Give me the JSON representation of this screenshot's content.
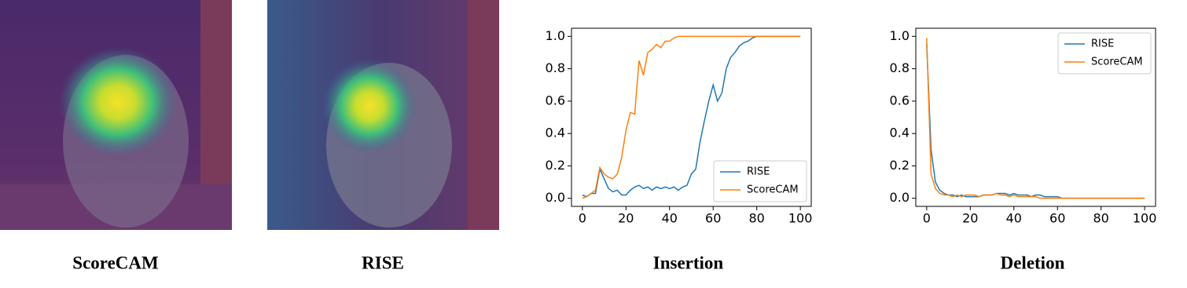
{
  "panels": [
    {
      "caption": "ScoreCAM"
    },
    {
      "caption": "RISE"
    }
  ],
  "chart_data": [
    {
      "type": "line",
      "title": "Insertion",
      "x": [
        0,
        2,
        4,
        6,
        8,
        10,
        12,
        14,
        16,
        18,
        20,
        22,
        24,
        26,
        28,
        30,
        32,
        34,
        36,
        38,
        40,
        42,
        44,
        46,
        48,
        50,
        52,
        54,
        56,
        58,
        60,
        62,
        64,
        66,
        68,
        70,
        72,
        74,
        76,
        78,
        80,
        82,
        84,
        86,
        88,
        90,
        92,
        94,
        96,
        98,
        100
      ],
      "series": [
        {
          "name": "RISE",
          "color": "#1f77b4",
          "values": [
            0.02,
            0.01,
            0.03,
            0.03,
            0.18,
            0.12,
            0.06,
            0.04,
            0.05,
            0.02,
            0.02,
            0.05,
            0.07,
            0.08,
            0.06,
            0.07,
            0.05,
            0.07,
            0.06,
            0.07,
            0.06,
            0.07,
            0.05,
            0.07,
            0.08,
            0.15,
            0.18,
            0.35,
            0.48,
            0.6,
            0.7,
            0.6,
            0.65,
            0.8,
            0.87,
            0.9,
            0.94,
            0.96,
            0.97,
            0.99,
            1.0,
            1.0,
            1.0,
            1.0,
            1.0,
            1.0,
            1.0,
            1.0,
            1.0,
            1.0,
            1.0
          ]
        },
        {
          "name": "ScoreCAM",
          "color": "#ff7f0e",
          "values": [
            0.0,
            0.01,
            0.03,
            0.05,
            0.19,
            0.15,
            0.13,
            0.12,
            0.15,
            0.25,
            0.42,
            0.53,
            0.52,
            0.85,
            0.76,
            0.9,
            0.92,
            0.95,
            0.93,
            0.97,
            0.97,
            0.99,
            1.0,
            1.0,
            1.0,
            1.0,
            1.0,
            1.0,
            1.0,
            1.0,
            1.0,
            1.0,
            1.0,
            1.0,
            1.0,
            1.0,
            1.0,
            1.0,
            1.0,
            1.0,
            1.0,
            1.0,
            1.0,
            1.0,
            1.0,
            1.0,
            1.0,
            1.0,
            1.0,
            1.0,
            1.0
          ]
        }
      ],
      "xlim": [
        -5,
        105
      ],
      "ylim": [
        -0.05,
        1.05
      ],
      "xticks": [
        0,
        20,
        40,
        60,
        80,
        100
      ],
      "yticks": [
        {
          "value": 0,
          "label": "0.0"
        },
        0.2,
        0.4,
        0.6,
        0.8,
        {
          "value": 1,
          "label": "1.0"
        }
      ],
      "legend": "lower right"
    },
    {
      "type": "line",
      "title": "Deletion",
      "x": [
        0,
        2,
        4,
        6,
        8,
        10,
        12,
        14,
        16,
        18,
        20,
        22,
        24,
        26,
        28,
        30,
        32,
        34,
        36,
        38,
        40,
        42,
        44,
        46,
        48,
        50,
        52,
        54,
        56,
        58,
        60,
        62,
        64,
        66,
        68,
        70,
        72,
        74,
        76,
        78,
        80,
        82,
        84,
        86,
        88,
        90,
        92,
        94,
        96,
        98,
        100
      ],
      "series": [
        {
          "name": "RISE",
          "color": "#1f77b4",
          "values": [
            0.95,
            0.3,
            0.1,
            0.05,
            0.03,
            0.02,
            0.02,
            0.01,
            0.02,
            0.01,
            0.01,
            0.01,
            0.01,
            0.02,
            0.02,
            0.02,
            0.03,
            0.03,
            0.03,
            0.02,
            0.03,
            0.02,
            0.02,
            0.02,
            0.01,
            0.02,
            0.02,
            0.01,
            0.01,
            0.01,
            0.01,
            0,
            0,
            0,
            0,
            0,
            0,
            0,
            0,
            0,
            0,
            0,
            0,
            0,
            0,
            0,
            0,
            0,
            0,
            0,
            0
          ]
        },
        {
          "name": "ScoreCAM",
          "color": "#ff7f0e",
          "values": [
            0.99,
            0.15,
            0.06,
            0.03,
            0.02,
            0.02,
            0.01,
            0.02,
            0.01,
            0.02,
            0.02,
            0.02,
            0.01,
            0.02,
            0.02,
            0.02,
            0.03,
            0.02,
            0.02,
            0.01,
            0.02,
            0.01,
            0.01,
            0.01,
            0.01,
            0.01,
            0,
            0,
            0,
            0,
            0,
            0,
            0,
            0,
            0,
            0,
            0,
            0,
            0,
            0,
            0,
            0,
            0,
            0,
            0,
            0,
            0,
            0,
            0,
            0,
            0
          ]
        }
      ],
      "xlim": [
        -5,
        105
      ],
      "ylim": [
        -0.05,
        1.05
      ],
      "xticks": [
        0,
        20,
        40,
        60,
        80,
        100
      ],
      "yticks": [
        {
          "value": 0,
          "label": "0.0"
        },
        0.2,
        0.4,
        0.6,
        0.8,
        {
          "value": 1,
          "label": "1.0"
        }
      ],
      "legend": "upper right"
    }
  ]
}
